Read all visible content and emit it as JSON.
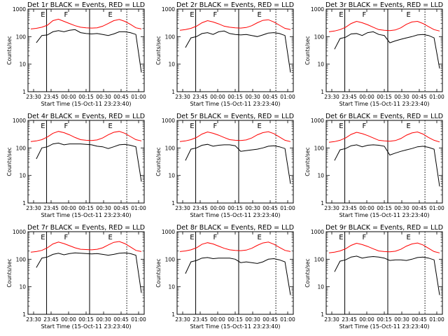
{
  "chart_data": [
    {
      "type": "line",
      "title": "Det 1r BLACK = Events, RED = LLD",
      "xlabel": "Start Time (15-Oct-11 23:23:40)",
      "ylabel": "Counts/sec",
      "yscale": "log",
      "ylim": [
        1,
        1000
      ],
      "xticks": [
        "23:30",
        "23:45",
        "00:00",
        "00:15",
        "00:30",
        "00:45",
        "01:00"
      ],
      "yticks": [
        "1",
        "10",
        "100",
        "1000"
      ],
      "markers": [
        "E",
        "F",
        "E"
      ],
      "series": [
        {
          "color": "#ff0000",
          "values": [
            190,
            200,
            220,
            260,
            380,
            430,
            360,
            300,
            250,
            220,
            210,
            205,
            210,
            240,
            300,
            380,
            420,
            360,
            280,
            210,
            190
          ]
        },
        {
          "color": "#000000",
          "values": [
            null,
            60,
            110,
            115,
            150,
            165,
            150,
            170,
            180,
            140,
            130,
            125,
            130,
            120,
            110,
            125,
            150,
            150,
            140,
            120,
            5
          ]
        }
      ]
    },
    {
      "type": "line",
      "title": "Det 2r BLACK = Events, RED = LLD",
      "xlabel": "Start Time (15-Oct-11 23:23:40)",
      "ylabel": "Counts/sec",
      "yscale": "log",
      "ylim": [
        1,
        1000
      ],
      "xticks": [
        "23:30",
        "23:45",
        "00:00",
        "00:15",
        "00:30",
        "00:45",
        "01:00"
      ],
      "yticks": [
        "1",
        "10",
        "100",
        "1000"
      ],
      "markers": [
        "E",
        "F",
        "E"
      ],
      "series": [
        {
          "color": "#ff0000",
          "values": [
            170,
            180,
            200,
            240,
            320,
            380,
            340,
            290,
            240,
            220,
            210,
            205,
            215,
            250,
            320,
            390,
            410,
            340,
            260,
            200,
            180
          ]
        },
        {
          "color": "#000000",
          "values": [
            null,
            40,
            90,
            100,
            130,
            140,
            120,
            150,
            160,
            130,
            120,
            115,
            120,
            110,
            100,
            115,
            135,
            140,
            130,
            110,
            5
          ]
        }
      ]
    },
    {
      "type": "line",
      "title": "Det 3r BLACK = Events, RED = LLD",
      "xlabel": "Start Time (15-Oct-11 23:23:40)",
      "ylabel": "Counts/sec",
      "yscale": "log",
      "ylim": [
        1,
        1000
      ],
      "xticks": [
        "23:30",
        "23:45",
        "00:00",
        "00:15",
        "00:30",
        "00:45",
        "01:00"
      ],
      "yticks": [
        "1",
        "10",
        "100",
        "1000"
      ],
      "markers": [
        "E",
        "F",
        "E"
      ],
      "series": [
        {
          "color": "#ff0000",
          "values": [
            150,
            160,
            180,
            220,
            300,
            360,
            320,
            270,
            220,
            180,
            170,
            165,
            175,
            210,
            280,
            340,
            360,
            300,
            230,
            180,
            160
          ]
        },
        {
          "color": "#000000",
          "values": [
            null,
            35,
            85,
            95,
            125,
            130,
            110,
            140,
            150,
            120,
            110,
            60,
            70,
            80,
            90,
            100,
            115,
            120,
            110,
            90,
            7
          ]
        }
      ]
    },
    {
      "type": "line",
      "title": "Det 4r BLACK = Events, RED = LLD",
      "xlabel": "Start Time (15-Oct-11 23:23:40)",
      "ylabel": "Counts/sec",
      "yscale": "log",
      "ylim": [
        1,
        1000
      ],
      "xticks": [
        "23:30",
        "23:45",
        "00:00",
        "00:15",
        "00:30",
        "00:45",
        "01:00"
      ],
      "yticks": [
        "1",
        "10",
        "100",
        "1000"
      ],
      "markers": [
        "E",
        "F",
        "E"
      ],
      "series": [
        {
          "color": "#ff0000",
          "values": [
            170,
            180,
            200,
            250,
            340,
            400,
            360,
            300,
            240,
            200,
            190,
            185,
            195,
            230,
            300,
            370,
            400,
            340,
            260,
            200,
            180
          ]
        },
        {
          "color": "#000000",
          "values": [
            null,
            40,
            100,
            110,
            140,
            150,
            130,
            140,
            140,
            140,
            135,
            130,
            115,
            110,
            95,
            110,
            130,
            135,
            125,
            110,
            6
          ]
        }
      ]
    },
    {
      "type": "line",
      "title": "Det 5r BLACK = Events, RED = LLD",
      "xlabel": "Start Time (15-Oct-11 23:23:40)",
      "ylabel": "Counts/sec",
      "yscale": "log",
      "ylim": [
        1,
        1000
      ],
      "xticks": [
        "23:30",
        "23:45",
        "00:00",
        "00:15",
        "00:30",
        "00:45",
        "01:00"
      ],
      "yticks": [
        "1",
        "10",
        "100",
        "1000"
      ],
      "markers": [
        "E",
        "F",
        "E"
      ],
      "series": [
        {
          "color": "#ff0000",
          "values": [
            170,
            180,
            200,
            240,
            320,
            380,
            340,
            290,
            240,
            200,
            190,
            185,
            195,
            230,
            300,
            360,
            390,
            330,
            250,
            190,
            170
          ]
        },
        {
          "color": "#000000",
          "values": [
            null,
            35,
            90,
            100,
            125,
            135,
            115,
            125,
            130,
            130,
            120,
            75,
            80,
            85,
            90,
            100,
            115,
            120,
            110,
            95,
            5
          ]
        }
      ]
    },
    {
      "type": "line",
      "title": "Det 6r BLACK = Events, RED = LLD",
      "xlabel": "Start Time (15-Oct-11 23:23:40)",
      "ylabel": "Counts/sec",
      "yscale": "log",
      "ylim": [
        1,
        1000
      ],
      "xticks": [
        "23:30",
        "23:45",
        "00:00",
        "00:15",
        "00:30",
        "00:45",
        "01:00"
      ],
      "yticks": [
        "1",
        "10",
        "100",
        "1000"
      ],
      "markers": [
        "E",
        "F",
        "E"
      ],
      "series": [
        {
          "color": "#ff0000",
          "values": [
            160,
            170,
            190,
            230,
            310,
            370,
            330,
            280,
            230,
            190,
            180,
            175,
            185,
            220,
            290,
            350,
            380,
            320,
            240,
            190,
            165
          ]
        },
        {
          "color": "#000000",
          "values": [
            null,
            35,
            85,
            95,
            120,
            130,
            110,
            125,
            130,
            125,
            115,
            55,
            65,
            75,
            85,
            95,
            110,
            115,
            105,
            90,
            4
          ]
        }
      ]
    },
    {
      "type": "line",
      "title": "Det 7r BLACK = Events, RED = LLD",
      "xlabel": "Start Time (15-Oct-11 23:23:40)",
      "ylabel": "Counts/sec",
      "yscale": "log",
      "ylim": [
        1,
        1000
      ],
      "xticks": [
        "23:30",
        "23:45",
        "00:00",
        "00:15",
        "00:30",
        "00:45",
        "01:00"
      ],
      "yticks": [
        "1",
        "10",
        "100",
        "1000"
      ],
      "markers": [
        "E",
        "F",
        "E"
      ],
      "series": [
        {
          "color": "#ff0000",
          "values": [
            180,
            190,
            210,
            260,
            360,
            420,
            370,
            310,
            260,
            230,
            225,
            220,
            230,
            260,
            330,
            410,
            440,
            370,
            280,
            210,
            190
          ]
        },
        {
          "color": "#000000",
          "values": [
            null,
            50,
            110,
            120,
            150,
            165,
            145,
            160,
            170,
            165,
            160,
            155,
            160,
            150,
            140,
            150,
            165,
            170,
            160,
            140,
            6
          ]
        }
      ]
    },
    {
      "type": "line",
      "title": "Det 8r BLACK = Events, RED = LLD",
      "xlabel": "Start Time (15-Oct-11 23:23:40)",
      "ylabel": "Counts/sec",
      "yscale": "log",
      "ylim": [
        1,
        1000
      ],
      "xticks": [
        "23:30",
        "23:45",
        "00:00",
        "00:15",
        "00:30",
        "00:45",
        "01:00"
      ],
      "yticks": [
        "1",
        "10",
        "100",
        "1000"
      ],
      "markers": [
        "E",
        "F",
        "E"
      ],
      "series": [
        {
          "color": "#ff0000",
          "values": [
            190,
            200,
            220,
            260,
            350,
            400,
            360,
            300,
            250,
            220,
            210,
            205,
            215,
            250,
            320,
            390,
            420,
            350,
            270,
            210,
            190
          ]
        },
        {
          "color": "#000000",
          "values": [
            null,
            30,
            80,
            90,
            110,
            115,
            105,
            110,
            110,
            110,
            100,
            75,
            80,
            75,
            70,
            80,
            100,
            105,
            95,
            80,
            5
          ]
        }
      ]
    },
    {
      "type": "line",
      "title": "Det 9r BLACK = Events, RED = LLD",
      "xlabel": "Start Time (15-Oct-11 23:23:40)",
      "ylabel": "Counts/sec",
      "yscale": "log",
      "ylim": [
        1,
        1000
      ],
      "xticks": [
        "23:30",
        "23:45",
        "00:00",
        "00:15",
        "00:30",
        "00:45",
        "01:00"
      ],
      "yticks": [
        "1",
        "10",
        "100",
        "1000"
      ],
      "markers": [
        "E",
        "F",
        "E"
      ],
      "series": [
        {
          "color": "#ff0000",
          "values": [
            170,
            180,
            200,
            240,
            320,
            380,
            340,
            290,
            240,
            200,
            190,
            185,
            195,
            230,
            300,
            360,
            390,
            330,
            250,
            190,
            170
          ]
        },
        {
          "color": "#000000",
          "values": [
            null,
            35,
            85,
            95,
            120,
            130,
            110,
            120,
            125,
            120,
            110,
            90,
            95,
            95,
            90,
            100,
            115,
            120,
            110,
            95,
            5
          ]
        }
      ]
    }
  ]
}
